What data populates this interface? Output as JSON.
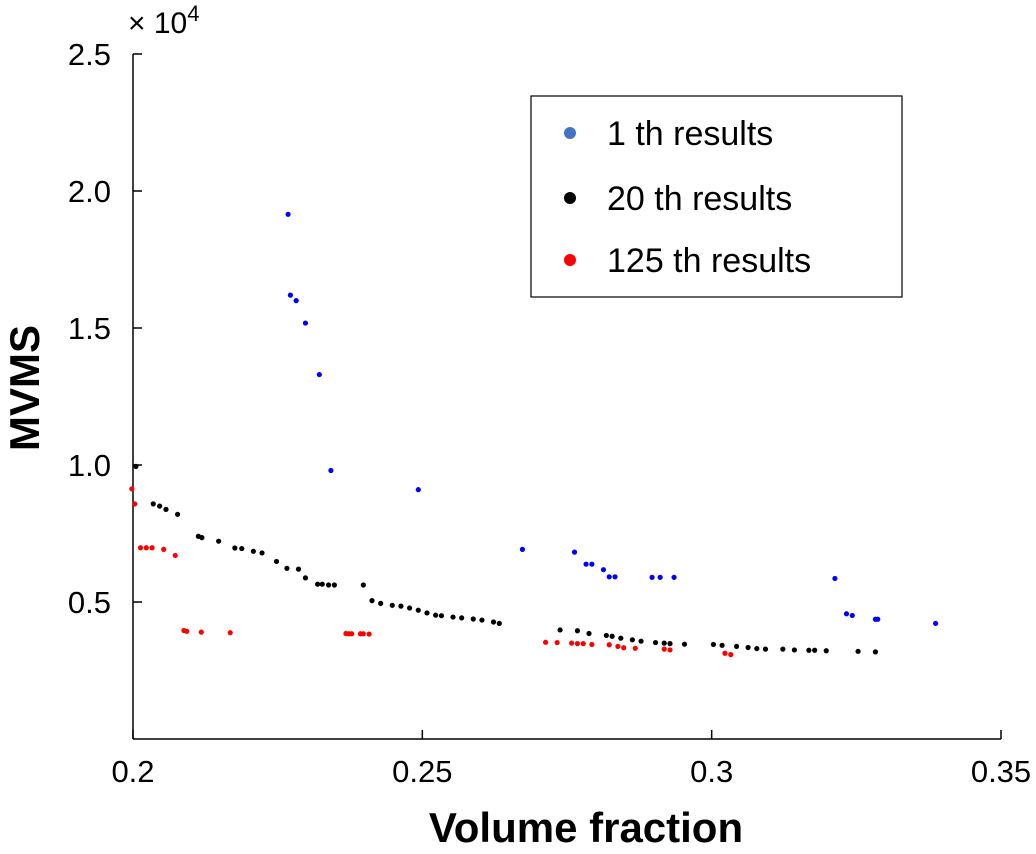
{
  "chart_data": {
    "type": "scatter",
    "xlabel": "Volume fraction",
    "ylabel": "MVMS",
    "xlim": [
      0.2,
      0.35
    ],
    "ylim": [
      0,
      25000
    ],
    "xticks": [
      0.2,
      0.25,
      0.3,
      0.35
    ],
    "xtick_labels": [
      "0.2",
      "0.25",
      "0.3",
      "0.35"
    ],
    "yticks": [
      5000,
      10000,
      15000,
      20000,
      25000
    ],
    "ytick_labels": [
      "0.5",
      "1.0",
      "1.5",
      "2.0",
      "2.5"
    ],
    "y_multiplier": {
      "base": "× 10",
      "exponent": "4"
    },
    "grid": false,
    "legend_position": "top-right",
    "series": [
      {
        "name": "1 th results",
        "color": "#0000ff",
        "legend_color": "#4472c4",
        "points": [
          [
            0.2268,
            19150
          ],
          [
            0.2272,
            16200
          ],
          [
            0.2282,
            16000
          ],
          [
            0.2298,
            15180
          ],
          [
            0.2322,
            13300
          ],
          [
            0.2342,
            9800
          ],
          [
            0.2493,
            9100
          ],
          [
            0.2673,
            6920
          ],
          [
            0.2763,
            6820
          ],
          [
            0.2783,
            6380
          ],
          [
            0.2793,
            6380
          ],
          [
            0.2813,
            6180
          ],
          [
            0.2823,
            5920
          ],
          [
            0.2833,
            5920
          ],
          [
            0.2897,
            5900
          ],
          [
            0.2911,
            5900
          ],
          [
            0.2935,
            5900
          ],
          [
            0.3213,
            5860
          ],
          [
            0.3233,
            4570
          ],
          [
            0.3243,
            4510
          ],
          [
            0.3283,
            4370
          ],
          [
            0.3287,
            4370
          ],
          [
            0.3387,
            4220
          ]
        ]
      },
      {
        "name": "20 th results",
        "color": "#000000",
        "legend_color": "#000000",
        "points": [
          [
            0.2005,
            9950
          ],
          [
            0.2035,
            8580
          ],
          [
            0.2046,
            8500
          ],
          [
            0.2057,
            8380
          ],
          [
            0.2077,
            8200
          ],
          [
            0.2113,
            7400
          ],
          [
            0.2119,
            7350
          ],
          [
            0.2148,
            7220
          ],
          [
            0.2176,
            6970
          ],
          [
            0.2188,
            6950
          ],
          [
            0.2208,
            6850
          ],
          [
            0.2223,
            6790
          ],
          [
            0.2248,
            6480
          ],
          [
            0.2266,
            6230
          ],
          [
            0.2286,
            6200
          ],
          [
            0.2298,
            5880
          ],
          [
            0.2319,
            5650
          ],
          [
            0.2327,
            5650
          ],
          [
            0.2338,
            5620
          ],
          [
            0.2348,
            5620
          ],
          [
            0.2398,
            5620
          ],
          [
            0.2413,
            5050
          ],
          [
            0.2428,
            4950
          ],
          [
            0.2448,
            4880
          ],
          [
            0.2463,
            4850
          ],
          [
            0.2478,
            4780
          ],
          [
            0.2493,
            4700
          ],
          [
            0.2508,
            4600
          ],
          [
            0.2523,
            4520
          ],
          [
            0.2533,
            4500
          ],
          [
            0.2553,
            4450
          ],
          [
            0.2568,
            4420
          ],
          [
            0.2588,
            4380
          ],
          [
            0.2603,
            4340
          ],
          [
            0.2623,
            4270
          ],
          [
            0.2633,
            4220
          ],
          [
            0.2738,
            3980
          ],
          [
            0.2768,
            3950
          ],
          [
            0.2788,
            3850
          ],
          [
            0.2818,
            3780
          ],
          [
            0.2828,
            3750
          ],
          [
            0.2843,
            3680
          ],
          [
            0.2863,
            3620
          ],
          [
            0.2878,
            3570
          ],
          [
            0.2903,
            3520
          ],
          [
            0.2918,
            3500
          ],
          [
            0.2928,
            3480
          ],
          [
            0.2953,
            3460
          ],
          [
            0.3003,
            3450
          ],
          [
            0.3018,
            3420
          ],
          [
            0.3043,
            3380
          ],
          [
            0.3063,
            3340
          ],
          [
            0.3078,
            3300
          ],
          [
            0.3093,
            3280
          ],
          [
            0.3123,
            3280
          ],
          [
            0.3143,
            3250
          ],
          [
            0.3168,
            3240
          ],
          [
            0.3178,
            3240
          ],
          [
            0.3198,
            3220
          ],
          [
            0.3253,
            3200
          ],
          [
            0.3283,
            3180
          ]
        ]
      },
      {
        "name": "125 th results",
        "color": "#ff0000",
        "legend_color": "#ff0000",
        "points": [
          [
            0.1998,
            9130
          ],
          [
            0.2003,
            8580
          ],
          [
            0.2013,
            6980
          ],
          [
            0.2023,
            6980
          ],
          [
            0.2033,
            6980
          ],
          [
            0.2053,
            6920
          ],
          [
            0.2073,
            6700
          ],
          [
            0.2088,
            3960
          ],
          [
            0.2093,
            3930
          ],
          [
            0.2118,
            3900
          ],
          [
            0.2168,
            3880
          ],
          [
            0.2368,
            3850
          ],
          [
            0.2373,
            3840
          ],
          [
            0.2378,
            3840
          ],
          [
            0.2393,
            3840
          ],
          [
            0.2398,
            3840
          ],
          [
            0.2408,
            3830
          ],
          [
            0.2713,
            3530
          ],
          [
            0.2733,
            3520
          ],
          [
            0.2758,
            3500
          ],
          [
            0.2768,
            3480
          ],
          [
            0.2778,
            3480
          ],
          [
            0.2793,
            3450
          ],
          [
            0.2823,
            3440
          ],
          [
            0.2838,
            3380
          ],
          [
            0.2848,
            3330
          ],
          [
            0.2868,
            3310
          ],
          [
            0.2918,
            3280
          ],
          [
            0.2928,
            3250
          ],
          [
            0.3023,
            3130
          ],
          [
            0.3033,
            3080
          ]
        ]
      }
    ]
  }
}
